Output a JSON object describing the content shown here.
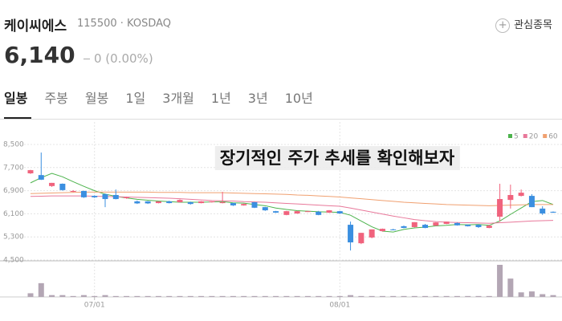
{
  "header": {
    "name": "케이씨에스",
    "code": "115500",
    "market": "KOSDAQ",
    "watch": "관심종목",
    "price": "6,140",
    "change": "0 (0.00%)"
  },
  "tabs": [
    "일봉",
    "주봉",
    "월봉",
    "1일",
    "3개월",
    "1년",
    "3년",
    "10년"
  ],
  "chart_data": {
    "type": "candlestick",
    "annotation": "장기적인 주가 추세를 확인해보자",
    "categories": [
      null,
      null,
      null,
      null,
      null,
      null,
      "07/01",
      null,
      null,
      null,
      null,
      null,
      null,
      null,
      null,
      null,
      null,
      null,
      null,
      null,
      null,
      null,
      null,
      null,
      null,
      null,
      null,
      null,
      null,
      "08/01",
      null,
      null,
      null,
      null,
      null,
      null,
      null,
      null,
      null,
      null,
      null,
      null,
      null,
      null,
      null,
      null,
      null,
      null,
      null,
      null
    ],
    "candles": {
      "up_color": "#f0637d",
      "down_color": "#3b8fe0",
      "open": [
        7500,
        7440,
        7060,
        7140,
        6860,
        6890,
        6720,
        6780,
        6750,
        6640,
        6530,
        6530,
        6470,
        6530,
        6500,
        6500,
        6470,
        6500,
        6470,
        6470,
        6390,
        6500,
        6330,
        6190,
        6060,
        6110,
        6170,
        6170,
        6140,
        6190,
        5720,
        5080,
        5280,
        5500,
        5560,
        5670,
        5640,
        5720,
        5690,
        5750,
        5780,
        5720,
        5720,
        5610,
        6000,
        6580,
        6720,
        6720,
        6280,
        6170
      ],
      "high": [
        7620,
        8220,
        7170,
        7150,
        6920,
        6900,
        6740,
        6800,
        6940,
        6690,
        6560,
        6540,
        6530,
        6550,
        6600,
        6520,
        6540,
        6530,
        6860,
        6480,
        6450,
        6510,
        6340,
        6200,
        6200,
        6200,
        6200,
        6200,
        6230,
        6200,
        5830,
        5440,
        5560,
        5590,
        5580,
        5690,
        5810,
        5750,
        5810,
        5830,
        5800,
        5730,
        5730,
        5720,
        7140,
        7110,
        6940,
        6780,
        6360,
        6180
      ],
      "low": [
        7480,
        7270,
        7030,
        6900,
        6850,
        6650,
        6650,
        6330,
        6600,
        6620,
        6440,
        6440,
        6460,
        6460,
        6490,
        6420,
        6460,
        6490,
        6460,
        6370,
        6380,
        6300,
        6200,
        6130,
        6050,
        6100,
        6160,
        6050,
        6130,
        6100,
        4830,
        5050,
        5250,
        5480,
        5530,
        5600,
        5630,
        5600,
        5680,
        5740,
        5690,
        5660,
        5610,
        5600,
        5830,
        6280,
        6700,
        6330,
        6060,
        6130
      ],
      "close": [
        7610,
        7280,
        7170,
        6920,
        6890,
        6670,
        6670,
        6610,
        6610,
        6670,
        6460,
        6460,
        6530,
        6470,
        6580,
        6440,
        6530,
        6530,
        6500,
        6390,
        6440,
        6310,
        6220,
        6140,
        6190,
        6190,
        6190,
        6060,
        6220,
        6110,
        5110,
        5440,
        5560,
        5580,
        5540,
        5610,
        5810,
        5610,
        5800,
        5830,
        5700,
        5670,
        5640,
        5690,
        6610,
        6750,
        6830,
        6330,
        6110,
        6140
      ]
    },
    "series": [
      {
        "name": "5",
        "color": "#4cb34c",
        "values": [
          7170,
          7350,
          7500,
          7380,
          7210,
          7050,
          6900,
          6780,
          6700,
          6650,
          6600,
          6570,
          6540,
          6520,
          6500,
          6500,
          6500,
          6510,
          6520,
          6480,
          6470,
          6420,
          6380,
          6300,
          6250,
          6210,
          6190,
          6170,
          6160,
          6150,
          6050,
          5850,
          5650,
          5500,
          5470,
          5560,
          5610,
          5640,
          5680,
          5700,
          5730,
          5720,
          5730,
          5700,
          5850,
          6080,
          6300,
          6520,
          6560,
          6420
        ]
      },
      {
        "name": "20",
        "color": "#e8789a",
        "values": [
          6700,
          6710,
          6720,
          6720,
          6720,
          6720,
          6710,
          6700,
          6690,
          6680,
          6670,
          6660,
          6650,
          6640,
          6620,
          6600,
          6580,
          6560,
          6550,
          6540,
          6520,
          6510,
          6500,
          6480,
          6460,
          6440,
          6420,
          6400,
          6380,
          6360,
          6300,
          6230,
          6160,
          6090,
          6020,
          5960,
          5900,
          5860,
          5830,
          5810,
          5800,
          5790,
          5780,
          5770,
          5790,
          5810,
          5830,
          5850,
          5860,
          5870
        ]
      },
      {
        "name": "60",
        "color": "#f0a070",
        "values": [
          6800,
          6810,
          6820,
          6830,
          6840,
          6850,
          6850,
          6850,
          6850,
          6850,
          6850,
          6850,
          6840,
          6840,
          6840,
          6830,
          6830,
          6830,
          6830,
          6820,
          6810,
          6800,
          6790,
          6780,
          6770,
          6750,
          6740,
          6720,
          6700,
          6680,
          6650,
          6620,
          6590,
          6560,
          6530,
          6500,
          6480,
          6460,
          6440,
          6420,
          6410,
          6400,
          6390,
          6380,
          6390,
          6400,
          6410,
          6420,
          6420,
          6420
        ]
      }
    ],
    "volume": {
      "color": "#b3a6b4",
      "values": [
        4,
        15,
        2,
        2,
        1,
        2,
        1,
        2,
        1,
        1,
        1,
        1,
        1,
        1,
        1,
        1,
        1,
        1,
        1,
        1,
        1,
        1,
        1,
        1,
        1,
        1,
        1,
        1,
        1,
        1,
        2,
        1,
        1,
        1,
        1,
        1,
        1,
        1,
        1,
        1,
        1,
        1,
        1,
        1,
        35,
        20,
        5,
        6,
        3,
        2
      ]
    },
    "ylim": [
      4500,
      8500
    ],
    "yticks": [
      {
        "value": 4500,
        "label": "4,500"
      },
      {
        "value": 5300,
        "label": "5,300"
      },
      {
        "value": 6100,
        "label": "6,100"
      },
      {
        "value": 6900,
        "label": "6,900"
      },
      {
        "value": 7700,
        "label": "7,700"
      },
      {
        "value": 8500,
        "label": "8,500"
      }
    ],
    "grid": true
  }
}
